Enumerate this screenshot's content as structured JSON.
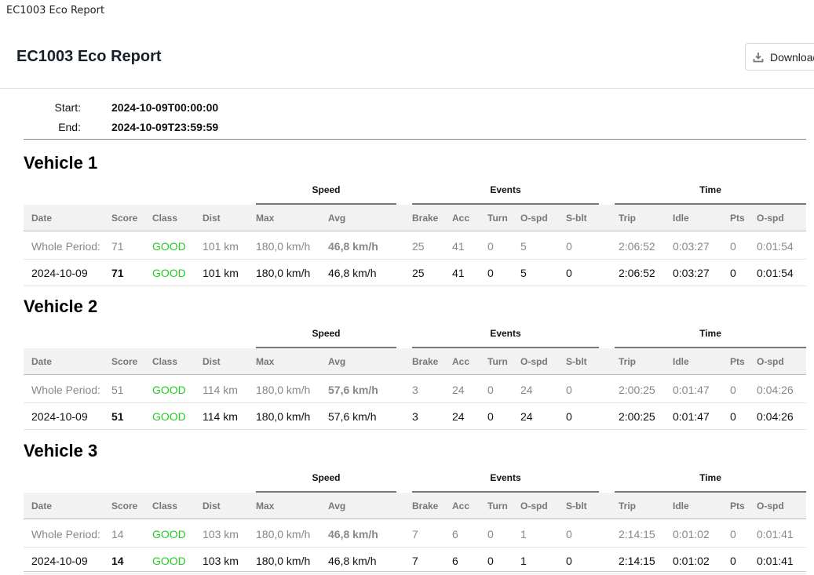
{
  "tab_title": "EC1003 Eco Report",
  "header": {
    "title": "EC1003 Eco Report",
    "download_label": "Download"
  },
  "range": {
    "start_label": "Start:",
    "start_value": "2024-10-09T00:00:00",
    "end_label": "End:",
    "end_value": "2024-10-09T23:59:59"
  },
  "groups": {
    "speed": "Speed",
    "events": "Events",
    "time": "Time"
  },
  "columns": {
    "date": "Date",
    "score": "Score",
    "class": "Class",
    "dist": "Dist",
    "max": "Max",
    "avg": "Avg",
    "brake": "Brake",
    "acc": "Acc",
    "turn": "Turn",
    "ospd": "O-spd",
    "sblt": "S-blt",
    "trip": "Trip",
    "idle": "Idle",
    "pts": "Pts",
    "ospd2": "O-spd"
  },
  "colors": {
    "good": "#22cc22",
    "muted": "#888888"
  },
  "vehicles": [
    {
      "title": "Vehicle 1",
      "rows": [
        {
          "date": "Whole Period:",
          "score": "71",
          "class": "GOOD",
          "dist": "101 km",
          "max": "180,0 km/h",
          "avg": "46,8 km/h",
          "brake": "25",
          "acc": "41",
          "turn": "0",
          "ospd": "5",
          "sblt": "0",
          "trip": "2:06:52",
          "idle": "0:03:27",
          "pts": "0",
          "ospd2": "0:01:54"
        },
        {
          "date": "2024-10-09",
          "score": "71",
          "class": "GOOD",
          "dist": "101 km",
          "max": "180,0 km/h",
          "avg": "46,8 km/h",
          "brake": "25",
          "acc": "41",
          "turn": "0",
          "ospd": "5",
          "sblt": "0",
          "trip": "2:06:52",
          "idle": "0:03:27",
          "pts": "0",
          "ospd2": "0:01:54"
        }
      ]
    },
    {
      "title": "Vehicle 2",
      "rows": [
        {
          "date": "Whole Period:",
          "score": "51",
          "class": "GOOD",
          "dist": "114 km",
          "max": "180,0 km/h",
          "avg": "57,6 km/h",
          "brake": "3",
          "acc": "24",
          "turn": "0",
          "ospd": "24",
          "sblt": "0",
          "trip": "2:00:25",
          "idle": "0:01:47",
          "pts": "0",
          "ospd2": "0:04:26"
        },
        {
          "date": "2024-10-09",
          "score": "51",
          "class": "GOOD",
          "dist": "114 km",
          "max": "180,0 km/h",
          "avg": "57,6 km/h",
          "brake": "3",
          "acc": "24",
          "turn": "0",
          "ospd": "24",
          "sblt": "0",
          "trip": "2:00:25",
          "idle": "0:01:47",
          "pts": "0",
          "ospd2": "0:04:26"
        }
      ]
    },
    {
      "title": "Vehicle 3",
      "rows": [
        {
          "date": "Whole Period:",
          "score": "14",
          "class": "GOOD",
          "dist": "103 km",
          "max": "180,0 km/h",
          "avg": "46,8 km/h",
          "brake": "7",
          "acc": "6",
          "turn": "0",
          "ospd": "1",
          "sblt": "0",
          "trip": "2:14:15",
          "idle": "0:01:02",
          "pts": "0",
          "ospd2": "0:01:41"
        },
        {
          "date": "2024-10-09",
          "score": "14",
          "class": "GOOD",
          "dist": "103 km",
          "max": "180,0 km/h",
          "avg": "46,8 km/h",
          "brake": "7",
          "acc": "6",
          "turn": "0",
          "ospd": "1",
          "sblt": "0",
          "trip": "2:14:15",
          "idle": "0:01:02",
          "pts": "0",
          "ospd2": "0:01:41"
        }
      ]
    }
  ]
}
